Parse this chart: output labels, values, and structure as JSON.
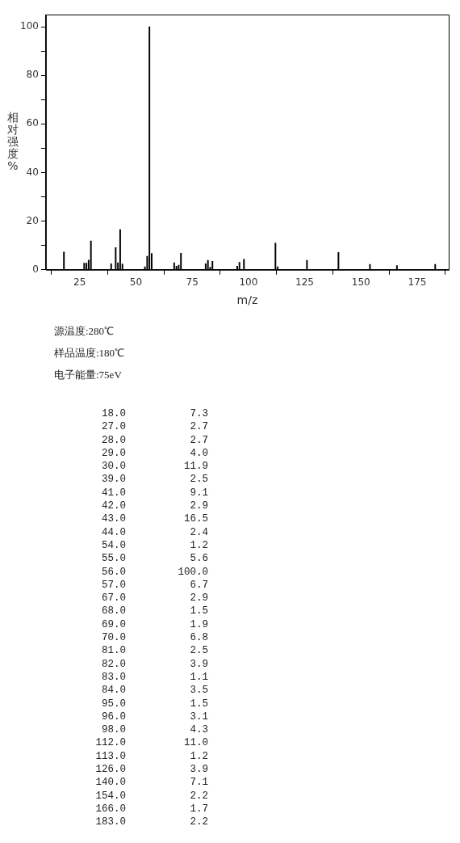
{
  "chart_data": [
    {
      "type": "bar",
      "xlabel": "m/z",
      "ylabel": "相对强度%",
      "x": [
        18,
        27,
        28,
        29,
        30,
        39,
        41,
        42,
        43,
        44,
        54,
        55,
        56,
        57,
        67,
        68,
        69,
        70,
        81,
        82,
        83,
        84,
        95,
        96,
        98,
        112,
        113,
        126,
        140,
        154,
        166,
        183
      ],
      "values": [
        7.3,
        2.7,
        2.7,
        4.0,
        11.9,
        2.5,
        9.1,
        2.9,
        16.5,
        2.4,
        1.2,
        5.6,
        100.0,
        6.7,
        2.9,
        1.5,
        1.9,
        6.8,
        2.5,
        3.9,
        1.1,
        3.5,
        1.5,
        3.1,
        4.3,
        11.0,
        1.2,
        3.9,
        7.1,
        2.2,
        1.7,
        2.2
      ],
      "color": "#000000",
      "xlim": [
        10,
        189
      ],
      "xticks": [
        25,
        50,
        75,
        100,
        125,
        150,
        175
      ],
      "ylim": [
        0,
        105
      ],
      "yticks": [
        0,
        {
          "value": 10,
          "label": null
        },
        20,
        {
          "value": 30,
          "label": null
        },
        40,
        {
          "value": 50,
          "label": null
        },
        60,
        {
          "value": 70,
          "label": null
        },
        80,
        {
          "value": 90,
          "label": null
        },
        100
      ],
      "grid": false,
      "legend": false
    },
    {
      "type": "other",
      "annotations": [
        "源温度:280℃",
        "样品温度:180℃",
        "电子能量:75eV",
        "18.0",
        "7.3",
        "27.0",
        "2.7",
        "28.0",
        "2.7",
        "29.0",
        "4.0",
        "30.0",
        "11.9",
        "39.0",
        "2.5",
        "41.0",
        "9.1",
        "42.0",
        "2.9",
        "43.0",
        "16.5",
        "44.0",
        "2.4",
        "54.0",
        "1.2",
        "55.0",
        "5.6",
        "56.0",
        "100.0",
        "57.0",
        "6.7",
        "67.0",
        "2.9",
        "68.0",
        "1.5",
        "69.0",
        "1.9",
        "70.0",
        "6.8",
        "81.0",
        "2.5",
        "82.0",
        "3.9",
        "83.0",
        "1.1",
        "84.0",
        "3.5",
        "95.0",
        "1.5",
        "96.0",
        "3.1",
        "98.0",
        "4.3",
        "112.0",
        "11.0",
        "113.0",
        "1.2",
        "126.0",
        "3.9",
        "140.0",
        "7.1",
        "154.0",
        "2.2",
        "166.0",
        "1.7",
        "183.0",
        "2.2"
      ]
    }
  ]
}
